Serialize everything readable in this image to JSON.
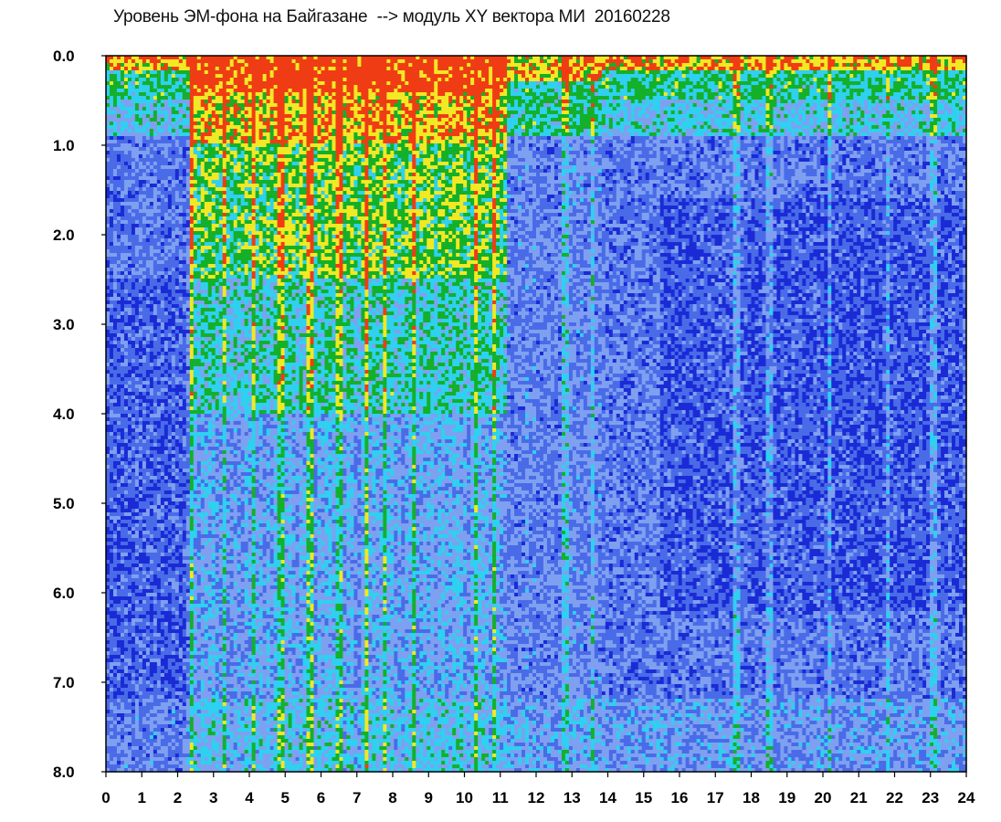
{
  "chart_data": {
    "type": "heatmap",
    "title": "Уровень ЭМ-фона на Байгазане  --> модуль XY вектора МИ  20160228",
    "xlabel": "",
    "ylabel": "",
    "x_ticks": [
      "0",
      "1",
      "2",
      "3",
      "4",
      "5",
      "6",
      "7",
      "8",
      "9",
      "10",
      "11",
      "12",
      "13",
      "14",
      "15",
      "16",
      "17",
      "18",
      "19",
      "20",
      "21",
      "22",
      "23",
      "24"
    ],
    "y_ticks": [
      "0.0",
      "1.0",
      "2.0",
      "3.0",
      "4.0",
      "5.0",
      "6.0",
      "7.0",
      "8.0"
    ],
    "xlim": [
      0,
      24
    ],
    "ylim": [
      0,
      8
    ],
    "y_inverted": true,
    "grid": false,
    "legend": "none",
    "colormap": [
      "#1a2bd6",
      "#4a6be8",
      "#7fa0f0",
      "#2fd0f0",
      "#14b02a",
      "#f2e824",
      "#f03c14"
    ],
    "active_periods": [
      {
        "start": 2.3,
        "end": 11.2
      },
      {
        "start": 11.2,
        "end": 13.8
      }
    ],
    "vertical_stripes": [
      2.4,
      3.3,
      4.1,
      4.9,
      5.7,
      6.5,
      7.3,
      7.8,
      8.6,
      10.3,
      10.8,
      12.8,
      13.6,
      17.6,
      18.5,
      20.2,
      21.8,
      23.1
    ]
  }
}
